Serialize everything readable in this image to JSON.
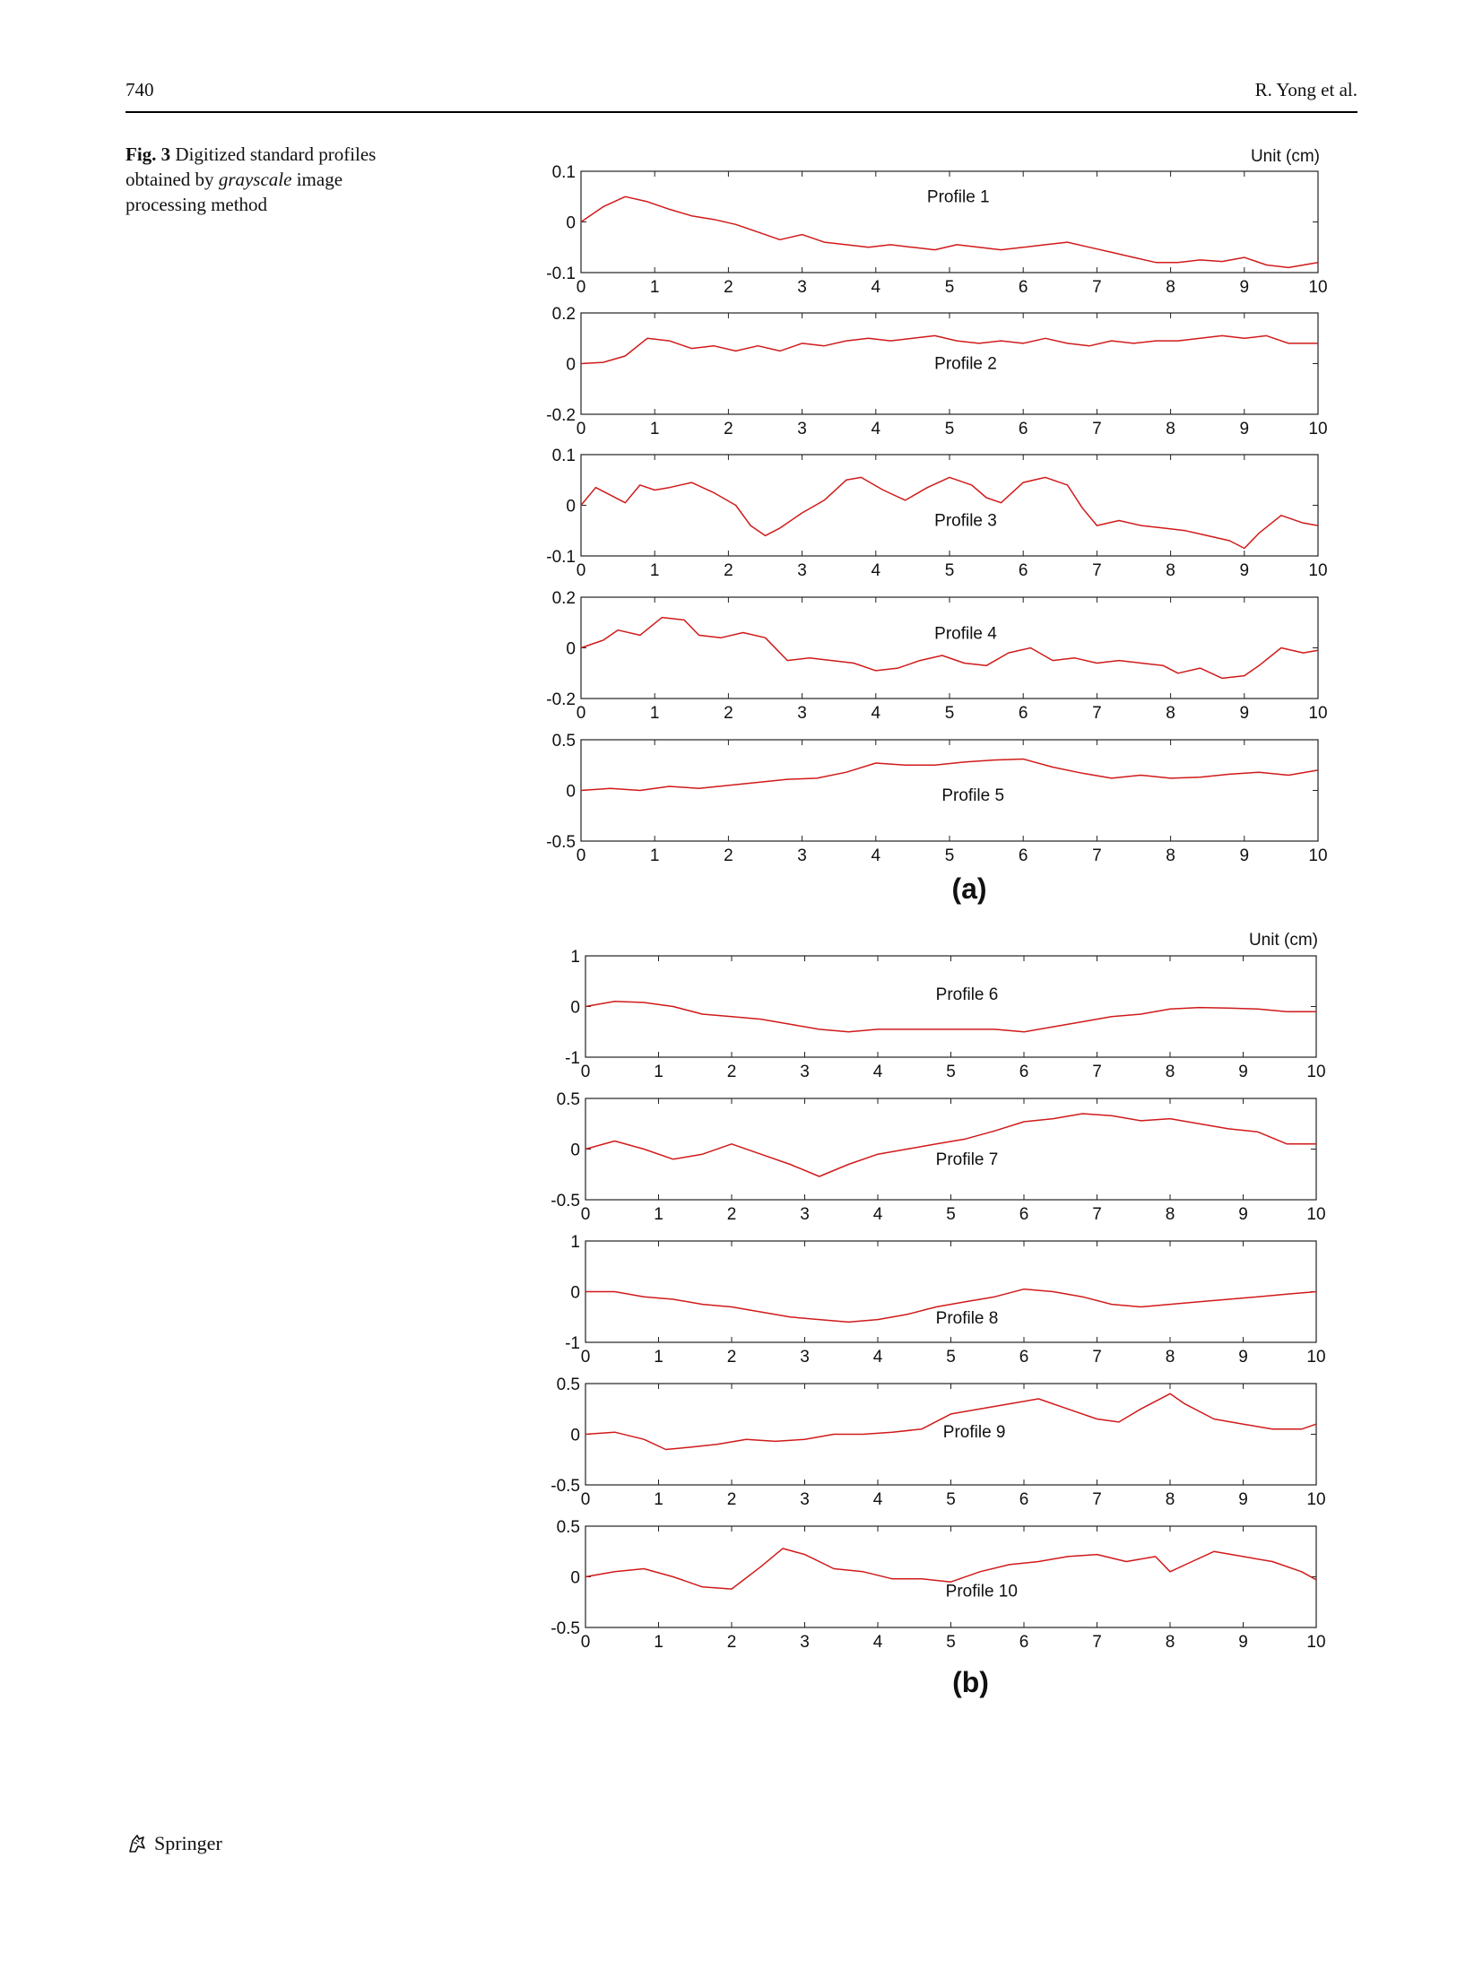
{
  "header": {
    "page_number": "740",
    "running_head": "R. Yong et al."
  },
  "caption": {
    "label": "Fig. 3",
    "text_before": "Digitized standard profiles obtained by",
    "emphasis": "grayscale",
    "text_after": "image processing method"
  },
  "footer": {
    "publisher": "Springer",
    "logo_icon": "springer-horse-icon"
  },
  "line_color": "#d11a1a",
  "chart_data": [
    {
      "type": "line",
      "panel": "(a)",
      "unit_label": "Unit (cm)",
      "subplots": [
        {
          "name": "Profile 1",
          "xlim": [
            0,
            10
          ],
          "ylim": [
            -0.1,
            0.1
          ],
          "yticks": [
            "0.1",
            "0",
            "-0.1"
          ],
          "xticks": [
            "0",
            "1",
            "2",
            "3",
            "4",
            "5",
            "6",
            "7",
            "8",
            "9",
            "10"
          ],
          "x": [
            0,
            0.3,
            0.6,
            0.9,
            1.2,
            1.5,
            1.8,
            2.1,
            2.4,
            2.7,
            3.0,
            3.3,
            3.6,
            3.9,
            4.2,
            4.5,
            4.8,
            5.1,
            5.4,
            5.7,
            6.0,
            6.3,
            6.6,
            6.9,
            7.2,
            7.5,
            7.8,
            8.1,
            8.4,
            8.7,
            9.0,
            9.3,
            9.6,
            10
          ],
          "y": [
            0,
            0.03,
            0.05,
            0.04,
            0.025,
            0.012,
            0.005,
            -0.005,
            -0.02,
            -0.035,
            -0.025,
            -0.04,
            -0.045,
            -0.05,
            -0.045,
            -0.05,
            -0.055,
            -0.045,
            -0.05,
            -0.055,
            -0.05,
            -0.045,
            -0.04,
            -0.05,
            -0.06,
            -0.07,
            -0.08,
            -0.08,
            -0.075,
            -0.078,
            -0.07,
            -0.085,
            -0.09,
            -0.08
          ]
        },
        {
          "name": "Profile 2",
          "xlim": [
            0,
            10
          ],
          "ylim": [
            -0.2,
            0.2
          ],
          "yticks": [
            "0.2",
            "0",
            "-0.2"
          ],
          "xticks": [
            "0",
            "1",
            "2",
            "3",
            "4",
            "5",
            "6",
            "7",
            "8",
            "9",
            "10"
          ],
          "x": [
            0,
            0.3,
            0.6,
            0.9,
            1.2,
            1.5,
            1.8,
            2.1,
            2.4,
            2.7,
            3.0,
            3.3,
            3.6,
            3.9,
            4.2,
            4.5,
            4.8,
            5.1,
            5.4,
            5.7,
            6.0,
            6.3,
            6.6,
            6.9,
            7.2,
            7.5,
            7.8,
            8.1,
            8.4,
            8.7,
            9.0,
            9.3,
            9.6,
            10
          ],
          "y": [
            0,
            0.005,
            0.03,
            0.1,
            0.09,
            0.06,
            0.07,
            0.05,
            0.07,
            0.05,
            0.08,
            0.07,
            0.09,
            0.1,
            0.09,
            0.1,
            0.11,
            0.09,
            0.08,
            0.09,
            0.08,
            0.1,
            0.08,
            0.07,
            0.09,
            0.08,
            0.09,
            0.09,
            0.1,
            0.11,
            0.1,
            0.11,
            0.08,
            0.08
          ]
        },
        {
          "name": "Profile 3",
          "xlim": [
            0,
            10
          ],
          "ylim": [
            -0.1,
            0.1
          ],
          "yticks": [
            "0.1",
            "0",
            "-0.1"
          ],
          "xticks": [
            "0",
            "1",
            "2",
            "3",
            "4",
            "5",
            "6",
            "7",
            "8",
            "9",
            "10"
          ],
          "x": [
            0,
            0.2,
            0.4,
            0.6,
            0.8,
            1.0,
            1.2,
            1.5,
            1.8,
            2.1,
            2.3,
            2.5,
            2.7,
            3.0,
            3.3,
            3.6,
            3.8,
            4.1,
            4.4,
            4.7,
            5.0,
            5.3,
            5.5,
            5.7,
            6.0,
            6.3,
            6.6,
            6.8,
            7.0,
            7.3,
            7.6,
            7.9,
            8.2,
            8.5,
            8.8,
            9.0,
            9.2,
            9.5,
            9.8,
            10
          ],
          "y": [
            0,
            0.035,
            0.02,
            0.005,
            0.04,
            0.03,
            0.035,
            0.045,
            0.025,
            0.0,
            -0.04,
            -0.06,
            -0.045,
            -0.015,
            0.01,
            0.05,
            0.055,
            0.03,
            0.01,
            0.035,
            0.055,
            0.04,
            0.015,
            0.005,
            0.045,
            0.055,
            0.04,
            -0.005,
            -0.04,
            -0.03,
            -0.04,
            -0.045,
            -0.05,
            -0.06,
            -0.07,
            -0.085,
            -0.055,
            -0.02,
            -0.035,
            -0.04
          ]
        },
        {
          "name": "Profile 4",
          "xlim": [
            0,
            10
          ],
          "ylim": [
            -0.2,
            0.2
          ],
          "yticks": [
            "0.2",
            "0",
            "-0.2"
          ],
          "xticks": [
            "0",
            "1",
            "2",
            "3",
            "4",
            "5",
            "6",
            "7",
            "8",
            "9",
            "10"
          ],
          "x": [
            0,
            0.3,
            0.5,
            0.8,
            1.1,
            1.4,
            1.6,
            1.9,
            2.2,
            2.5,
            2.8,
            3.1,
            3.4,
            3.7,
            4.0,
            4.3,
            4.6,
            4.9,
            5.2,
            5.5,
            5.8,
            6.1,
            6.4,
            6.7,
            7.0,
            7.3,
            7.6,
            7.9,
            8.1,
            8.4,
            8.7,
            9.0,
            9.2,
            9.5,
            9.8,
            10
          ],
          "y": [
            0,
            0.03,
            0.07,
            0.05,
            0.12,
            0.11,
            0.05,
            0.04,
            0.06,
            0.04,
            -0.05,
            -0.04,
            -0.05,
            -0.06,
            -0.09,
            -0.08,
            -0.05,
            -0.03,
            -0.06,
            -0.07,
            -0.02,
            0.0,
            -0.05,
            -0.04,
            -0.06,
            -0.05,
            -0.06,
            -0.07,
            -0.1,
            -0.08,
            -0.12,
            -0.11,
            -0.07,
            0.0,
            -0.02,
            -0.01
          ]
        },
        {
          "name": "Profile 5",
          "xlim": [
            0,
            10
          ],
          "ylim": [
            -0.5,
            0.5
          ],
          "yticks": [
            "0.5",
            "0",
            "-0.5"
          ],
          "xticks": [
            "0",
            "1",
            "2",
            "3",
            "4",
            "5",
            "6",
            "7",
            "8",
            "9",
            "10"
          ],
          "x": [
            0,
            0.4,
            0.8,
            1.2,
            1.6,
            2.0,
            2.4,
            2.8,
            3.2,
            3.6,
            4.0,
            4.4,
            4.8,
            5.2,
            5.6,
            6.0,
            6.4,
            6.8,
            7.2,
            7.6,
            8.0,
            8.4,
            8.8,
            9.2,
            9.6,
            10
          ],
          "y": [
            0,
            0.02,
            0.0,
            0.04,
            0.02,
            0.05,
            0.08,
            0.11,
            0.12,
            0.18,
            0.27,
            0.25,
            0.25,
            0.28,
            0.3,
            0.31,
            0.23,
            0.17,
            0.12,
            0.15,
            0.12,
            0.13,
            0.16,
            0.18,
            0.15,
            0.2
          ]
        }
      ]
    },
    {
      "type": "line",
      "panel": "(b)",
      "unit_label": "Unit (cm)",
      "subplots": [
        {
          "name": "Profile 6",
          "xlim": [
            0,
            10
          ],
          "ylim": [
            -1,
            1
          ],
          "yticks": [
            "1",
            "0",
            "-1"
          ],
          "xticks": [
            "0",
            "1",
            "2",
            "3",
            "4",
            "5",
            "6",
            "7",
            "8",
            "9",
            "10"
          ],
          "x": [
            0,
            0.4,
            0.8,
            1.2,
            1.6,
            2.0,
            2.4,
            2.8,
            3.2,
            3.6,
            4.0,
            4.4,
            4.8,
            5.2,
            5.6,
            6.0,
            6.4,
            6.8,
            7.2,
            7.6,
            8.0,
            8.4,
            8.8,
            9.2,
            9.6,
            10
          ],
          "y": [
            0,
            0.1,
            0.08,
            0.0,
            -0.15,
            -0.2,
            -0.25,
            -0.35,
            -0.45,
            -0.5,
            -0.45,
            -0.45,
            -0.45,
            -0.45,
            -0.45,
            -0.5,
            -0.4,
            -0.3,
            -0.2,
            -0.15,
            -0.05,
            -0.02,
            -0.03,
            -0.05,
            -0.1,
            -0.1
          ]
        },
        {
          "name": "Profile 7",
          "xlim": [
            0,
            10
          ],
          "ylim": [
            -0.5,
            0.5
          ],
          "yticks": [
            "0.5",
            "0",
            "-0.5"
          ],
          "xticks": [
            "0",
            "1",
            "2",
            "3",
            "4",
            "5",
            "6",
            "7",
            "8",
            "9",
            "10"
          ],
          "x": [
            0,
            0.4,
            0.8,
            1.2,
            1.6,
            2.0,
            2.4,
            2.8,
            3.2,
            3.6,
            4.0,
            4.4,
            4.8,
            5.2,
            5.6,
            6.0,
            6.4,
            6.8,
            7.2,
            7.6,
            8.0,
            8.4,
            8.8,
            9.2,
            9.6,
            10
          ],
          "y": [
            0,
            0.08,
            0.0,
            -0.1,
            -0.05,
            0.05,
            -0.05,
            -0.15,
            -0.27,
            -0.15,
            -0.05,
            0.0,
            0.05,
            0.1,
            0.18,
            0.27,
            0.3,
            0.35,
            0.33,
            0.28,
            0.3,
            0.25,
            0.2,
            0.17,
            0.05,
            0.05
          ]
        },
        {
          "name": "Profile 8",
          "xlim": [
            0,
            10
          ],
          "ylim": [
            -1,
            1
          ],
          "yticks": [
            "1",
            "0",
            "-1"
          ],
          "xticks": [
            "0",
            "1",
            "2",
            "3",
            "4",
            "5",
            "6",
            "7",
            "8",
            "9",
            "10"
          ],
          "x": [
            0,
            0.4,
            0.8,
            1.2,
            1.6,
            2.0,
            2.4,
            2.8,
            3.2,
            3.6,
            4.0,
            4.4,
            4.8,
            5.2,
            5.6,
            6.0,
            6.4,
            6.8,
            7.2,
            7.6,
            8.0,
            8.4,
            8.8,
            9.2,
            9.6,
            10
          ],
          "y": [
            0,
            0.0,
            -0.1,
            -0.15,
            -0.25,
            -0.3,
            -0.4,
            -0.5,
            -0.55,
            -0.6,
            -0.55,
            -0.45,
            -0.3,
            -0.2,
            -0.1,
            0.05,
            0.0,
            -0.1,
            -0.25,
            -0.3,
            -0.25,
            -0.2,
            -0.15,
            -0.1,
            -0.05,
            0.0
          ]
        },
        {
          "name": "Profile 9",
          "xlim": [
            0,
            10
          ],
          "ylim": [
            -0.5,
            0.5
          ],
          "yticks": [
            "0.5",
            "0",
            "-0.5"
          ],
          "xticks": [
            "0",
            "1",
            "2",
            "3",
            "4",
            "5",
            "6",
            "7",
            "8",
            "9",
            "10"
          ],
          "x": [
            0,
            0.4,
            0.8,
            1.1,
            1.4,
            1.8,
            2.2,
            2.6,
            3.0,
            3.4,
            3.8,
            4.2,
            4.6,
            5.0,
            5.4,
            5.8,
            6.2,
            6.6,
            7.0,
            7.3,
            7.6,
            8.0,
            8.2,
            8.6,
            9.0,
            9.4,
            9.8,
            10
          ],
          "y": [
            0,
            0.02,
            -0.05,
            -0.15,
            -0.13,
            -0.1,
            -0.05,
            -0.07,
            -0.05,
            0.0,
            0.0,
            0.02,
            0.05,
            0.2,
            0.25,
            0.3,
            0.35,
            0.25,
            0.15,
            0.12,
            0.25,
            0.4,
            0.3,
            0.15,
            0.1,
            0.05,
            0.05,
            0.1
          ]
        },
        {
          "name": "Profile 10",
          "xlim": [
            0,
            10
          ],
          "ylim": [
            -0.5,
            0.5
          ],
          "yticks": [
            "0.5",
            "0",
            "-0.5"
          ],
          "xticks": [
            "0",
            "1",
            "2",
            "3",
            "4",
            "5",
            "6",
            "7",
            "8",
            "9",
            "10"
          ],
          "x": [
            0,
            0.4,
            0.8,
            1.2,
            1.6,
            2.0,
            2.4,
            2.7,
            3.0,
            3.4,
            3.8,
            4.2,
            4.6,
            5.0,
            5.4,
            5.8,
            6.2,
            6.6,
            7.0,
            7.4,
            7.8,
            8.0,
            8.3,
            8.6,
            9.0,
            9.4,
            9.8,
            10
          ],
          "y": [
            0,
            0.05,
            0.08,
            0.0,
            -0.1,
            -0.12,
            0.1,
            0.28,
            0.22,
            0.08,
            0.05,
            -0.02,
            -0.02,
            -0.05,
            0.05,
            0.12,
            0.15,
            0.2,
            0.22,
            0.15,
            0.2,
            0.05,
            0.15,
            0.25,
            0.2,
            0.15,
            0.05,
            -0.03
          ]
        }
      ]
    }
  ]
}
